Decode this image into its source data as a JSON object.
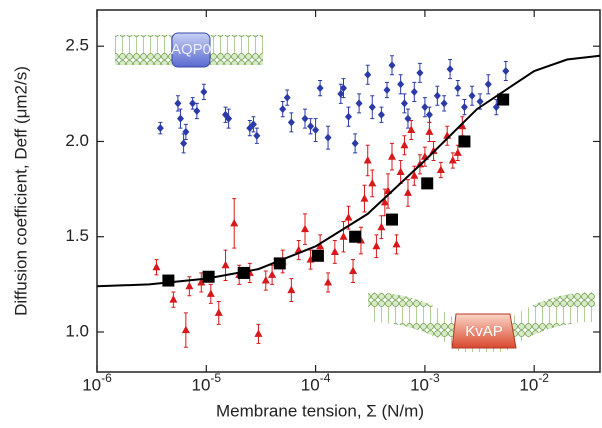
{
  "chart_data": {
    "type": "scatter",
    "x_label": "Membrane tension, Σ (N/m)",
    "y_label": "Diffusion coefficient, Deff (μm2/s)",
    "log_x": true,
    "xlim": [
      1e-06,
      0.04
    ],
    "ylim": [
      0.79,
      2.69
    ],
    "xticks": [
      {
        "value": 1e-06,
        "label": "10-6"
      },
      {
        "value": 1e-05,
        "label": "10-5"
      },
      {
        "value": 0.0001,
        "label": "10-4"
      },
      {
        "value": 0.001,
        "label": "10-3"
      },
      {
        "value": 0.01,
        "label": "10-2"
      }
    ],
    "yticks": [
      {
        "value": 1,
        "label": "1.0"
      },
      1.5,
      {
        "value": 2,
        "label": "2.0"
      },
      2.5
    ],
    "annotations": [
      "AQP0",
      "KvAP"
    ],
    "series": [
      {
        "color": "#2b3aa8",
        "marker": "diamond",
        "x": [
          3.8e-06,
          5.5e-06,
          5.8e-06,
          6.2e-06,
          6.5e-06,
          7.5e-06,
          8.2e-06,
          9.5e-06,
          1.5e-05,
          1.6e-05,
          2.5e-05,
          2.7e-05,
          2.9e-05,
          5e-05,
          5.5e-05,
          6e-05,
          8e-05,
          9e-05,
          0.0001,
          0.00011,
          0.00013,
          0.00017,
          0.00018,
          0.0002,
          0.00023,
          0.00025,
          0.0003,
          0.00033,
          0.0004,
          0.00045,
          0.0005,
          0.0006,
          0.00065,
          0.0007,
          0.0008,
          0.0009,
          0.001,
          0.0011,
          0.0013,
          0.0015,
          0.0017,
          0.002,
          0.0023,
          0.0027,
          0.0032,
          0.0038,
          0.0045,
          0.0055
        ],
        "values": [
          2.07,
          2.2,
          2.12,
          1.99,
          2.05,
          2.2,
          2.16,
          2.26,
          2.14,
          2.12,
          2.07,
          2.09,
          2.03,
          2.17,
          2.23,
          2.1,
          2.12,
          2.08,
          2.06,
          2.28,
          2.02,
          2.25,
          2.28,
          2.13,
          1.99,
          2.2,
          2.35,
          2.18,
          2.14,
          2.27,
          2.4,
          2.3,
          2.2,
          2.12,
          2.26,
          2.36,
          2.18,
          2.14,
          2.24,
          2.2,
          2.38,
          2.28,
          2.18,
          2.24,
          2.21,
          2.3,
          2.18,
          2.37
        ],
        "errors": [
          0.03,
          0.04,
          0.05,
          0.05,
          0.04,
          0.03,
          0.04,
          0.04,
          0.04,
          0.05,
          0.04,
          0.04,
          0.04,
          0.04,
          0.04,
          0.05,
          0.05,
          0.04,
          0.06,
          0.04,
          0.06,
          0.05,
          0.05,
          0.05,
          0.05,
          0.05,
          0.05,
          0.06,
          0.04,
          0.04,
          0.05,
          0.05,
          0.05,
          0.05,
          0.05,
          0.05,
          0.05,
          0.04,
          0.05,
          0.04,
          0.05,
          0.04,
          0.04,
          0.05,
          0.04,
          0.05,
          0.04,
          0.05
        ]
      },
      {
        "color": "#d8191c",
        "marker": "triangle",
        "x": [
          3.5e-06,
          5e-06,
          6.5e-06,
          7e-06,
          9e-06,
          1.1e-05,
          1.3e-05,
          1.5e-05,
          1.8e-05,
          2e-05,
          2.5e-05,
          3e-05,
          3.5e-05,
          4e-05,
          5e-05,
          6e-05,
          7e-05,
          8e-05,
          9e-05,
          0.00011,
          0.00013,
          0.00015,
          0.00018,
          0.0002,
          0.00022,
          0.00026,
          0.00028,
          0.0003,
          0.00033,
          0.00036,
          0.0004,
          0.00043,
          0.00046,
          0.0005,
          0.00055,
          0.0006,
          0.00065,
          0.0007,
          0.00075,
          0.0008,
          0.0009,
          0.001,
          0.0011,
          0.0012,
          0.0014,
          0.0016,
          0.0018,
          0.002,
          0.0022
        ],
        "values": [
          1.34,
          1.17,
          1.01,
          1.24,
          1.26,
          1.2,
          1.1,
          1.35,
          1.57,
          1.3,
          1.31,
          0.99,
          1.27,
          1.3,
          1.37,
          1.22,
          1.43,
          1.54,
          1.38,
          1.45,
          1.26,
          1.42,
          1.5,
          1.6,
          1.32,
          1.48,
          1.7,
          1.9,
          1.78,
          1.45,
          1.55,
          1.68,
          1.74,
          1.92,
          1.46,
          1.84,
          1.98,
          1.73,
          2.06,
          1.82,
          1.88,
          1.92,
          2.05,
          1.95,
          1.85,
          2.03,
          1.9,
          1.94,
          2.08
        ],
        "errors": [
          0.04,
          0.04,
          0.09,
          0.05,
          0.05,
          0.05,
          0.06,
          0.08,
          0.13,
          0.05,
          0.05,
          0.05,
          0.05,
          0.05,
          0.06,
          0.06,
          0.05,
          0.08,
          0.05,
          0.06,
          0.05,
          0.06,
          0.08,
          0.06,
          0.06,
          0.07,
          0.07,
          0.08,
          0.07,
          0.06,
          0.06,
          0.07,
          0.09,
          0.07,
          0.05,
          0.06,
          0.05,
          0.07,
          0.05,
          0.05,
          0.05,
          0.05,
          0.05,
          0.05,
          0.04,
          0.05,
          0.04,
          0.04,
          0.05
        ]
      },
      {
        "color": "#000000",
        "marker": "square",
        "x": [
          4.5e-06,
          1.05e-05,
          2.2e-05,
          4.7e-05,
          0.000105,
          0.00023,
          0.0005,
          0.00105,
          0.0023,
          0.0052
        ],
        "values": [
          1.27,
          1.29,
          1.31,
          1.36,
          1.4,
          1.5,
          1.59,
          1.78,
          2.0,
          2.22
        ]
      },
      {
        "color": "#000000",
        "marker": "line",
        "x": [
          1e-06,
          3e-06,
          1e-05,
          3e-05,
          0.0001,
          0.0003,
          0.001,
          0.003,
          0.01,
          0.02,
          0.04
        ],
        "values": [
          1.24,
          1.25,
          1.28,
          1.33,
          1.45,
          1.62,
          1.9,
          2.17,
          2.37,
          2.43,
          2.45
        ]
      }
    ]
  }
}
